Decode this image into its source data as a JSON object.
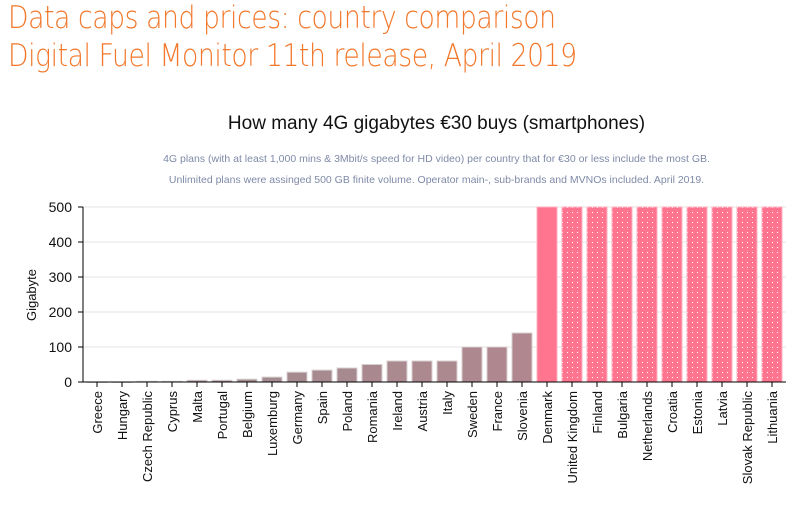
{
  "header": {
    "line1": "Data caps and prices: country comparison",
    "line2": "Digital Fuel Monitor 11th release, April 2019"
  },
  "chart_data": {
    "type": "bar",
    "title": "How many 4G gigabytes €30 buys (smartphones)",
    "subtitle": [
      "4G plans (with at least 1,000 mins & 3Mbit/s speed for HD video) per country that for €30 or less include the most GB.",
      "Unlimited plans were assinged 500 GB finite volume. Operator main-, sub-brands and MVNOs included. April 2019."
    ],
    "xlabel": "",
    "ylabel": "Gigabyte",
    "ylim": [
      0,
      500
    ],
    "yticks": [
      0,
      100,
      200,
      300,
      400,
      500
    ],
    "grid": true,
    "categories": [
      "Greece",
      "Hungary",
      "Czech Republic",
      "Cyprus",
      "Malta",
      "Portugal",
      "Belgium",
      "Luxemburg",
      "Germany",
      "Spain",
      "Poland",
      "Romania",
      "Ireland",
      "Austria",
      "Italy",
      "Sweden",
      "France",
      "Slovenia",
      "Denmark",
      "United Kingdom",
      "Finland",
      "Bulgaria",
      "Netherlands",
      "Croatia",
      "Estonia",
      "Latvia",
      "Slovak Republic",
      "Lithuania"
    ],
    "values": [
      0,
      0,
      2,
      2,
      5,
      5,
      8,
      14,
      28,
      34,
      40,
      50,
      60,
      60,
      60,
      100,
      100,
      140,
      500,
      500,
      500,
      500,
      500,
      500,
      500,
      500,
      500,
      500
    ],
    "unlimited": [
      false,
      false,
      false,
      false,
      false,
      false,
      false,
      false,
      false,
      false,
      false,
      false,
      false,
      false,
      false,
      false,
      false,
      false,
      false,
      true,
      true,
      true,
      true,
      true,
      true,
      true,
      true,
      true
    ],
    "colors": {
      "low": "#9b8e8f",
      "mid": "#b0878f",
      "high": "#ff7590"
    }
  }
}
